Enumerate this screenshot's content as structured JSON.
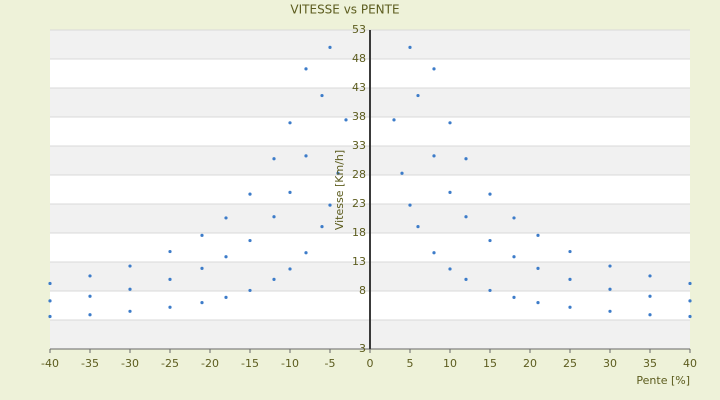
{
  "chart_data": {
    "type": "scatter",
    "title": "VITESSE vs PENTE",
    "x_label": "Pente [%]",
    "y_label": "Vitesse [Km/h]",
    "series": [
      {
        "color": "#3d7cc9",
        "x": [
          3,
          4,
          5,
          6,
          8,
          10,
          12,
          15,
          18,
          21,
          25,
          30,
          35,
          40,
          5,
          6,
          8,
          10,
          12,
          15,
          18,
          21,
          25,
          30,
          35,
          40,
          8,
          10,
          12,
          15,
          18,
          21,
          25,
          30,
          35,
          40,
          -3,
          -4,
          -5,
          -6,
          -8,
          -10,
          -12,
          -15,
          -18,
          -21,
          -25,
          -30,
          -35,
          -40,
          -5,
          -6,
          -8,
          -10,
          -12,
          -15,
          -18,
          -21,
          -25,
          -30,
          -35,
          -40,
          -8,
          -10,
          -12,
          -15,
          -18,
          -21,
          -25,
          -30,
          -35,
          -40
        ],
        "values": [
          37.5,
          28.3,
          22.8,
          19.1,
          14.6,
          11.8,
          10,
          8.1,
          6.9,
          6,
          5.2,
          4.5,
          3.9,
          3.6,
          50,
          41.7,
          31.3,
          25,
          20.8,
          16.7,
          13.9,
          11.9,
          10,
          8.3,
          7.1,
          6.3,
          46.3,
          37,
          30.8,
          24.7,
          20.6,
          17.6,
          14.8,
          12.3,
          10.6,
          9.3,
          37.5,
          28.3,
          22.8,
          19.1,
          14.6,
          11.8,
          10,
          8.1,
          6.9,
          6,
          5.2,
          4.5,
          3.9,
          3.6,
          50,
          41.7,
          31.3,
          25,
          20.8,
          16.7,
          13.9,
          11.9,
          10,
          8.3,
          7.1,
          6.3,
          46.3,
          37,
          30.8,
          24.7,
          20.6,
          17.6,
          14.8,
          12.3,
          10.6,
          9.3
        ]
      }
    ],
    "xlim": [
      -40,
      40
    ],
    "xticks": [
      -40,
      -35,
      -30,
      -25,
      -20,
      -15,
      -10,
      -5,
      0,
      5,
      10,
      15,
      20,
      25,
      30,
      35,
      40
    ],
    "ylim": [
      -2,
      53
    ],
    "yticks": [
      3,
      8,
      13,
      18,
      23,
      28,
      33,
      38,
      43,
      48,
      53
    ],
    "grid": true
  }
}
